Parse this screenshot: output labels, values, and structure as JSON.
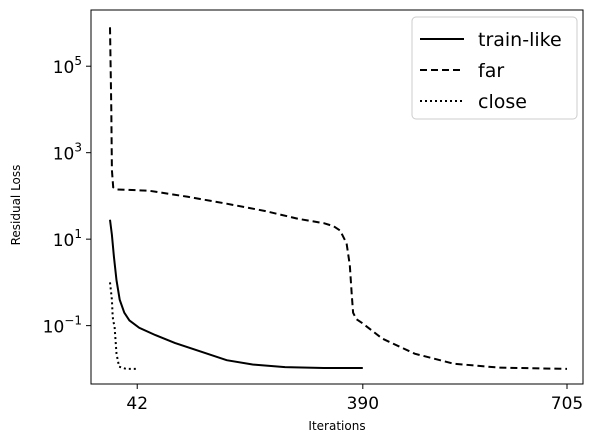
{
  "chart_data": {
    "type": "line",
    "xlabel": "Iterations",
    "ylabel": "Residual Loss",
    "yscale": "log",
    "xlim": [
      0,
      735
    ],
    "ylim_log10": [
      -2.35,
      6.3
    ],
    "xticks": [
      42,
      390,
      705
    ],
    "xtick_labels": [
      "42",
      "390",
      "705"
    ],
    "yticks_exp": [
      -1,
      1,
      3,
      5
    ],
    "ytick_labels": [
      {
        "base": "10",
        "exp": "−1"
      },
      {
        "base": "10",
        "exp": "1"
      },
      {
        "base": "10",
        "exp": "3"
      },
      {
        "base": "10",
        "exp": "5"
      }
    ],
    "grid": false,
    "legend_position": "top-right",
    "series": [
      {
        "name": "train-like",
        "style": "solid",
        "color": "#000000",
        "points_log10": [
          [
            0,
            1.45
          ],
          [
            3,
            1.1
          ],
          [
            6,
            0.6
          ],
          [
            10,
            0.05
          ],
          [
            15,
            -0.4
          ],
          [
            22,
            -0.7
          ],
          [
            30,
            -0.88
          ],
          [
            45,
            -1.05
          ],
          [
            70,
            -1.22
          ],
          [
            100,
            -1.4
          ],
          [
            140,
            -1.6
          ],
          [
            180,
            -1.8
          ],
          [
            220,
            -1.9
          ],
          [
            270,
            -1.96
          ],
          [
            330,
            -1.98
          ],
          [
            390,
            -1.98
          ]
        ]
      },
      {
        "name": "far",
        "style": "dashed",
        "color": "#000000",
        "points_log10": [
          [
            0,
            5.9
          ],
          [
            2,
            4.0
          ],
          [
            3,
            2.6
          ],
          [
            5,
            2.2
          ],
          [
            10,
            2.15
          ],
          [
            60,
            2.12
          ],
          [
            120,
            1.98
          ],
          [
            180,
            1.82
          ],
          [
            240,
            1.65
          ],
          [
            290,
            1.47
          ],
          [
            330,
            1.37
          ],
          [
            345,
            1.3
          ],
          [
            355,
            1.2
          ],
          [
            365,
            0.9
          ],
          [
            370,
            0.4
          ],
          [
            373,
            -0.3
          ],
          [
            375,
            -0.7
          ],
          [
            380,
            -0.85
          ],
          [
            390,
            -0.95
          ],
          [
            420,
            -1.3
          ],
          [
            470,
            -1.65
          ],
          [
            530,
            -1.88
          ],
          [
            600,
            -1.97
          ],
          [
            705,
            -2.0
          ]
        ]
      },
      {
        "name": "close",
        "style": "dotted",
        "color": "#000000",
        "points_log10": [
          [
            0,
            0.0
          ],
          [
            3,
            -0.4
          ],
          [
            4,
            -0.75
          ],
          [
            5,
            -0.9
          ],
          [
            7,
            -1.0
          ],
          [
            10,
            -1.65
          ],
          [
            14,
            -1.95
          ],
          [
            25,
            -2.0
          ],
          [
            42,
            -2.0
          ]
        ]
      }
    ]
  }
}
